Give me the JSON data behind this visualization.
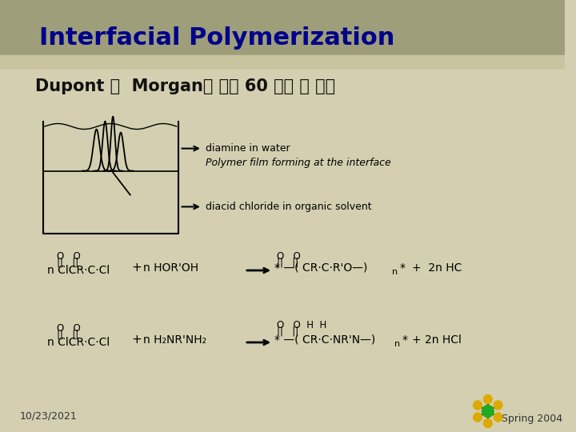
{
  "title": "Interfacial Polymerization",
  "subtitle": "Dupont 의  Morgan에 의해 60 년대 초 발견",
  "slide_bg": "#d4cfb0",
  "header_bg": "#9e9e7a",
  "header_sub": "#c8c4a0",
  "title_color": "#00008B",
  "label1": "diamine in water",
  "label2": "Polymer film forming at the interface",
  "label3": "diacid chloride in organic solvent",
  "date": "10/23/2021",
  "footer": "Spring 2004"
}
